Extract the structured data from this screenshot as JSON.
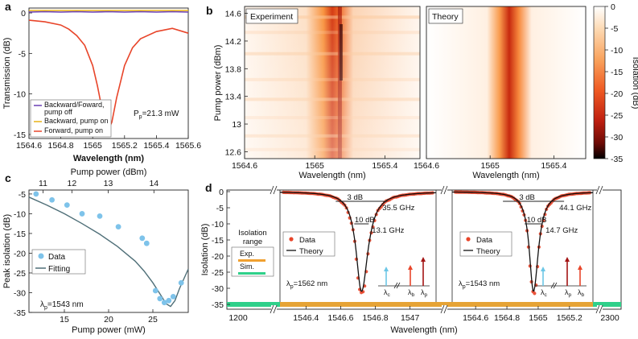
{
  "figure": {
    "panel_labels": [
      "a",
      "b",
      "c",
      "d"
    ]
  },
  "chart_data": [
    {
      "panel": "a",
      "type": "line",
      "xlabel": "Wavelength (nm)",
      "ylabel": "Transmission (dB)",
      "xlim": [
        1564.6,
        1565.6
      ],
      "ylim": [
        -15.5,
        0.6
      ],
      "xticks": [
        "1564.6",
        "1564.8",
        "1565",
        "1565.2",
        "1565.4",
        "1565.6"
      ],
      "yticks": [
        "0",
        "-5",
        "-10",
        "-15"
      ],
      "annotation": "P",
      "annotation_sub": "p",
      "annotation_rest": "=21.3 mW",
      "legend_position": "bottom-left",
      "series": [
        {
          "name": "Backward/Foward, pump off",
          "color": "#6a3fb5",
          "x": [
            1564.6,
            1564.7,
            1564.8,
            1564.9,
            1565.0,
            1565.1,
            1565.2,
            1565.3,
            1565.4,
            1565.5,
            1565.6
          ],
          "y": [
            0.1,
            0.15,
            0.1,
            0.15,
            0.1,
            0.15,
            0.1,
            0.15,
            0.1,
            0.15,
            0.1
          ]
        },
        {
          "name": "Backward, pump on",
          "color": "#e8b317",
          "x": [
            1564.6,
            1564.7,
            1564.8,
            1564.9,
            1565.0,
            1565.1,
            1565.2,
            1565.3,
            1565.4,
            1565.5,
            1565.6
          ],
          "y": [
            0.3,
            0.3,
            0.3,
            0.3,
            0.3,
            0.3,
            0.3,
            0.3,
            0.3,
            0.3,
            0.3
          ]
        },
        {
          "name": "Forward, pump on",
          "color": "#e8452a",
          "x": [
            1564.6,
            1564.7,
            1564.8,
            1564.85,
            1564.9,
            1564.95,
            1565.0,
            1565.03,
            1565.06,
            1565.08,
            1565.1,
            1565.12,
            1565.15,
            1565.2,
            1565.25,
            1565.3,
            1565.4,
            1565.5,
            1565.6
          ],
          "y": [
            -0.9,
            -1.1,
            -1.5,
            -2.0,
            -2.8,
            -4.0,
            -6.5,
            -9.0,
            -12.0,
            -13.6,
            -14.3,
            -13.5,
            -10.5,
            -6.5,
            -4.3,
            -3.2,
            -2.3,
            -1.9,
            -2.5
          ]
        }
      ]
    },
    {
      "panel": "b",
      "type": "heatmap",
      "subplots": [
        "Experiment",
        "Theory"
      ],
      "xlabel": "Wavelength (nm)",
      "ylabel": "Pump power (dBm)",
      "xlim": [
        1564.6,
        1565.6
      ],
      "ylim": [
        12.5,
        14.7
      ],
      "xticks": [
        "1564.6",
        "1565",
        "1565.4"
      ],
      "yticks": [
        "14.6",
        "14.2",
        "13.8",
        "13.4",
        "13",
        "12.6"
      ],
      "peak_x": 1565.15,
      "peak_x_theory": 1565.12,
      "colorbar": {
        "label": "Isolation (dB)",
        "range": [
          -35,
          0
        ],
        "ticks": [
          "0",
          "-5",
          "-10",
          "-15",
          "-20",
          "-25",
          "-30",
          "-35"
        ]
      }
    },
    {
      "panel": "c",
      "type": "scatter",
      "xlabel": "Pump power (mW)",
      "x2label": "Pump power (dBm)",
      "ylabel": "Peak isolation (dB)",
      "xlim": [
        11,
        29
      ],
      "ylim": [
        -35,
        -4
      ],
      "xticks": [
        "15",
        "20",
        "25"
      ],
      "x2ticks": [
        "11",
        "12",
        "13",
        "14"
      ],
      "yticks": [
        "-5",
        "-10",
        "-15",
        "-20",
        "-25",
        "-30",
        "-35"
      ],
      "annotation": "λ",
      "annotation_sub": "p",
      "annotation_rest": "=1543 nm",
      "legend_position": "center-left",
      "series": [
        {
          "name": "Data",
          "color": "#7ec3ea",
          "type": "scatter",
          "x": [
            11.8,
            13.6,
            15.3,
            17.0,
            19.0,
            21.1,
            23.8,
            24.3,
            25.3,
            25.8,
            26.3,
            26.8,
            27.3,
            28.2
          ],
          "y": [
            -5.0,
            -6.5,
            -7.8,
            -10.0,
            -10.6,
            -13.3,
            -16.2,
            -17.5,
            -29.5,
            -31.5,
            -32.5,
            -32.0,
            -31.0,
            -27.5
          ]
        },
        {
          "name": "Fitting",
          "color": "#4f6f78",
          "type": "line",
          "x": [
            11,
            13,
            15,
            17,
            19,
            21,
            23,
            24,
            25,
            26,
            26.5,
            27,
            27.5,
            28,
            29
          ],
          "y": [
            -5.8,
            -7.8,
            -10.0,
            -12.5,
            -15.2,
            -18.3,
            -22.0,
            -24.5,
            -27.5,
            -31.0,
            -32.8,
            -33.5,
            -32.0,
            -29.0,
            -24.0
          ]
        }
      ]
    },
    {
      "panel": "d",
      "type": "line",
      "xlabel": "Wavelength (nm)",
      "ylabel": "Isolation (dB)",
      "ylim": [
        -36.5,
        0.5
      ],
      "yticks": [
        "0",
        "-5",
        "-10",
        "-15",
        "-20",
        "-25",
        "-30",
        "-35"
      ],
      "xticks_left": [
        "1200"
      ],
      "xticks_mid1": [
        "1546.4",
        "1546.6",
        "1546.8",
        "1547"
      ],
      "xticks_mid2": [
        "1564.6",
        "1564.8",
        "1565",
        "1565.2"
      ],
      "xticks_right": [
        "2300"
      ],
      "isolation_range_label": [
        "Isolation",
        "range"
      ],
      "range_legend": [
        {
          "name": "Exp.",
          "color": "#f0a030"
        },
        {
          "name": "Sim.",
          "color": "#2fd08a"
        }
      ],
      "subpanels": [
        {
          "lambda_p": "=1562 nm",
          "xlim": [
            1546.25,
            1547.15
          ],
          "dip_x": 1546.72,
          "bw_3db": "3 dB",
          "bw_3db_val": "35.5 GHz",
          "bw_10db": "10 dB",
          "bw_10db_val": "13.1 GHz",
          "legend": [
            "Data",
            "Theory"
          ],
          "arrow_order": [
            "c",
            "b",
            "p"
          ]
        },
        {
          "lambda_p": "=1543 nm",
          "xlim": [
            1564.45,
            1565.35
          ],
          "dip_x": 1564.97,
          "bw_3db": "3 dB",
          "bw_3db_val": "44.1 GHz",
          "bw_10db": "10 dB",
          "bw_10db_val": "14.7 GHz",
          "legend": [
            "Data",
            "Theory"
          ],
          "arrow_order": [
            "c",
            "p",
            "b"
          ]
        }
      ],
      "series": [
        {
          "name": "Data",
          "color": "#e8452a"
        },
        {
          "name": "Theory",
          "color": "#111111"
        }
      ]
    }
  ]
}
